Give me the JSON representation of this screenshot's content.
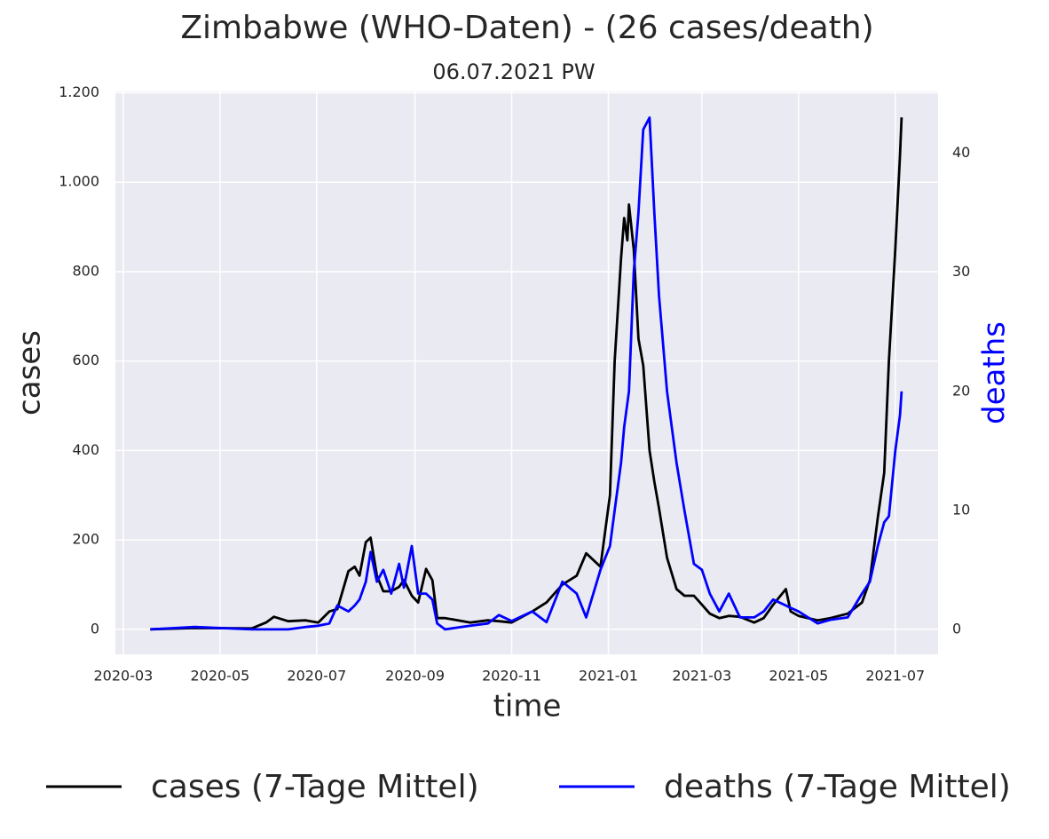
{
  "chart_data": {
    "type": "line",
    "title": "Zimbabwe (WHO-Daten) - (26 cases/death)",
    "subtitle": "06.07.2021 PW",
    "x_label": "time",
    "y_label": "cases",
    "y2_label": "deaths",
    "x": [
      "2020-03-18",
      "2020-04-15",
      "2020-05-21",
      "2020-05-30",
      "2020-06-04",
      "2020-06-13",
      "2020-06-24",
      "2020-07-02",
      "2020-07-09",
      "2020-07-14",
      "2020-07-21",
      "2020-07-25",
      "2020-07-28",
      "2020-08-01",
      "2020-08-04",
      "2020-08-08",
      "2020-08-12",
      "2020-08-17",
      "2020-08-22",
      "2020-08-25",
      "2020-08-30",
      "2020-09-03",
      "2020-09-08",
      "2020-09-12",
      "2020-09-15",
      "2020-09-20",
      "2020-10-06",
      "2020-10-17",
      "2020-10-24",
      "2020-11-01",
      "2020-11-14",
      "2020-11-23",
      "2020-12-03",
      "2020-12-12",
      "2020-12-18",
      "2020-12-27",
      "2021-01-02",
      "2021-01-05",
      "2021-01-09",
      "2021-01-11",
      "2021-01-13",
      "2021-01-14",
      "2021-01-17",
      "2021-01-20",
      "2021-01-23",
      "2021-01-27",
      "2021-01-30",
      "2021-02-02",
      "2021-02-07",
      "2021-02-13",
      "2021-02-18",
      "2021-02-24",
      "2021-03-01",
      "2021-03-06",
      "2021-03-12",
      "2021-03-18",
      "2021-03-25",
      "2021-04-03",
      "2021-04-09",
      "2021-04-15",
      "2021-04-23",
      "2021-04-26",
      "2021-05-01",
      "2021-05-13",
      "2021-05-21",
      "2021-06-01",
      "2021-06-10",
      "2021-06-15",
      "2021-06-20",
      "2021-06-24",
      "2021-06-27",
      "2021-07-01",
      "2021-07-04",
      "2021-07-05"
    ],
    "series": [
      {
        "name": "cases (7-Tage Mittel)",
        "color": "#000000",
        "axis": "y",
        "values": [
          0,
          3,
          2,
          15,
          28,
          18,
          20,
          15,
          40,
          45,
          130,
          140,
          120,
          195,
          205,
          120,
          85,
          85,
          95,
          110,
          75,
          60,
          135,
          110,
          25,
          25,
          15,
          20,
          18,
          15,
          40,
          60,
          100,
          120,
          170,
          140,
          300,
          600,
          830,
          920,
          870,
          950,
          850,
          650,
          590,
          400,
          330,
          270,
          160,
          90,
          75,
          75,
          55,
          35,
          25,
          30,
          28,
          15,
          25,
          55,
          90,
          40,
          30,
          20,
          25,
          35,
          60,
          110,
          250,
          350,
          600,
          850,
          1060,
          1145
        ]
      },
      {
        "name": "deaths (7-Tage Mittel)",
        "color": "#0000ff",
        "axis": "y2",
        "values": [
          0,
          0.2,
          0,
          0,
          0,
          0,
          0.2,
          0.3,
          0.5,
          2,
          1.5,
          2,
          2.5,
          4,
          6.5,
          4,
          5,
          3,
          5.5,
          3.5,
          7,
          3,
          3,
          2.5,
          0.5,
          0,
          0.3,
          0.5,
          1.2,
          0.7,
          1.5,
          0.6,
          4,
          3,
          1,
          5,
          7,
          10,
          14,
          17,
          19,
          20,
          30,
          35,
          42,
          43,
          35,
          28,
          20,
          14,
          10,
          5.5,
          5,
          3,
          1.5,
          3,
          1,
          1,
          1.5,
          2.5,
          2,
          1.8,
          1.5,
          0.5,
          0.8,
          1,
          3,
          4,
          7,
          9,
          9.5,
          15,
          18,
          20
        ]
      }
    ],
    "xlim": [
      "2020-02-25",
      "2021-07-28"
    ],
    "xticks": [
      "2020-03",
      "2020-05",
      "2020-07",
      "2020-09",
      "2020-11",
      "2021-01",
      "2021-03",
      "2021-05",
      "2021-07"
    ],
    "ylim": [
      -56,
      1203
    ],
    "yticks": [
      0,
      200,
      400,
      600,
      800,
      {
        "value": 1000,
        "label": "1.000"
      },
      {
        "value": 1200,
        "label": "1.200"
      }
    ],
    "y2lim": [
      -2.1,
      45.2
    ],
    "y2ticks": [
      0,
      10,
      20,
      30,
      40
    ],
    "grid": true,
    "legend": "bottom"
  }
}
